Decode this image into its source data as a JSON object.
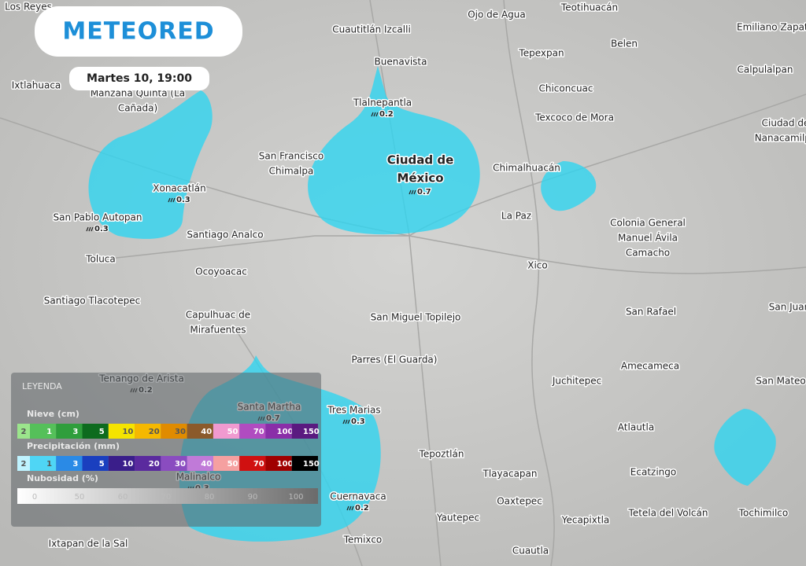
{
  "header": {
    "logo": "METEORED",
    "datetime": "Martes 10, 19:00"
  },
  "places": [
    {
      "name": "Los Reyes"
    },
    {
      "name": "Cuautitlán Izcalli"
    },
    {
      "name": "Ojo de Agua"
    },
    {
      "name": "Teotihuacán"
    },
    {
      "name": "Emiliano Zapata"
    },
    {
      "name": "Buenavista"
    },
    {
      "name": "Tepexpan"
    },
    {
      "name": "Belen"
    },
    {
      "name": "Ixtlahuaca"
    },
    {
      "name": [
        "Manzana Quinta (La",
        "Cañada)"
      ]
    },
    {
      "name": "Calpulalpan"
    },
    {
      "name": "Tlalnepantla",
      "value": 0.2
    },
    {
      "name": "Chiconcuac"
    },
    {
      "name": "Texcoco de Mora"
    },
    {
      "name": [
        "Ciudad de",
        "Nanacamilpa"
      ]
    },
    {
      "name": [
        "San Francisco",
        "Chimalpa"
      ]
    },
    {
      "name": [
        "Ciudad de",
        "México"
      ],
      "value": 0.7
    },
    {
      "name": "Chimalhuacán"
    },
    {
      "name": "Xonacatlán",
      "value": 0.3
    },
    {
      "name": "San Pablo Autopan",
      "value": 0.3
    },
    {
      "name": "La Paz"
    },
    {
      "name": [
        "Colonia General",
        "Manuel Ávila",
        "Camacho"
      ]
    },
    {
      "name": "Santiago Analco"
    },
    {
      "name": "Toluca"
    },
    {
      "name": "Xico"
    },
    {
      "name": "Ocoyoacac"
    },
    {
      "name": "Santiago Tlacotepec"
    },
    {
      "name": "San Rafael"
    },
    {
      "name": "San Juan"
    },
    {
      "name": [
        "Capulhuac de",
        "Mirafuentes"
      ]
    },
    {
      "name": "San Miguel Topilejo"
    },
    {
      "name": "Parres (El Guarda)"
    },
    {
      "name": "Amecameca"
    },
    {
      "name": "Tenango de Arista",
      "value": 0.2
    },
    {
      "name": "Juchitepec"
    },
    {
      "name": "San Mateo"
    },
    {
      "name": "Santa Martha",
      "value": 0.7
    },
    {
      "name": "Tres Marias",
      "value": 0.3
    },
    {
      "name": "Atlautla"
    },
    {
      "name": "Tepoztlán"
    },
    {
      "name": "Tlayacapan"
    },
    {
      "name": "Ecatzingo"
    },
    {
      "name": "Malinalco",
      "value": 0.3
    },
    {
      "name": "Cuernavaca",
      "value": 0.2
    },
    {
      "name": "Oaxtepec"
    },
    {
      "name": "Tetela del Volcán"
    },
    {
      "name": "Tochimilco"
    },
    {
      "name": "Yautepec"
    },
    {
      "name": "Yecapixtla"
    },
    {
      "name": "Ixtapan de la Sal"
    },
    {
      "name": "Temixco"
    },
    {
      "name": "Cuautla"
    }
  ],
  "legend": {
    "title": "LEYENDA",
    "snow": {
      "title": "Nieve (cm)",
      "steps": [
        2,
        1,
        3,
        5,
        10,
        20,
        30,
        40,
        50,
        70,
        100,
        150
      ]
    },
    "precipitation": {
      "title": "Precipitación (mm)",
      "steps": [
        2,
        1,
        3,
        5,
        10,
        20,
        30,
        40,
        50,
        70,
        100,
        150
      ]
    },
    "cloud": {
      "title": "Nubosidad (%)",
      "steps": [
        0,
        50,
        60,
        70,
        80,
        90,
        100
      ]
    }
  }
}
